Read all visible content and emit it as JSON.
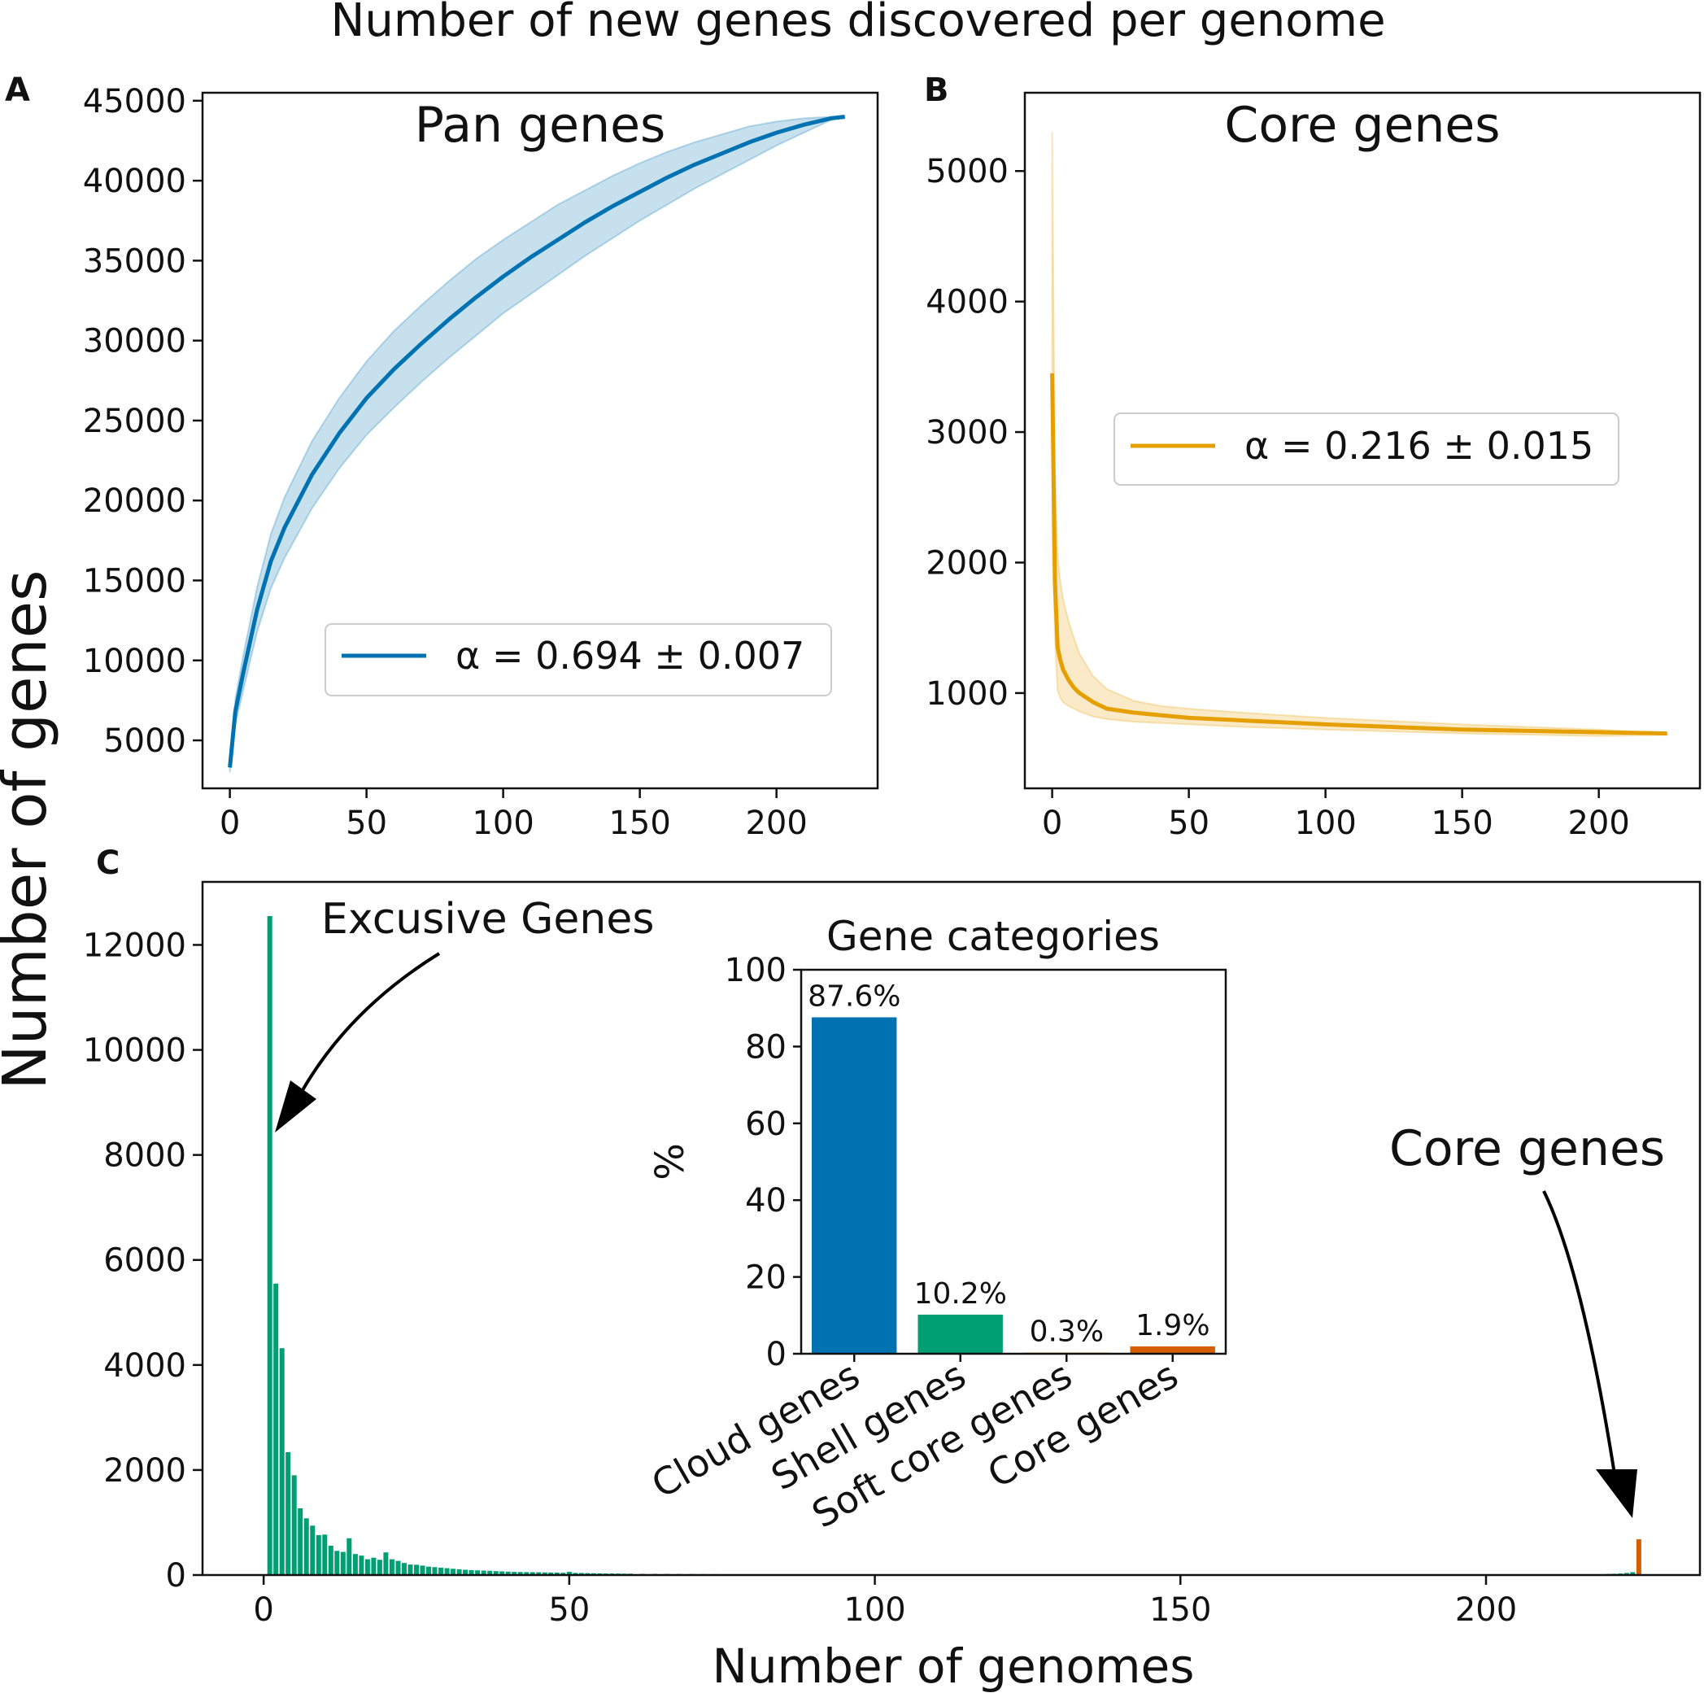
{
  "figure_title": "Number of new genes discovered per genome",
  "ylabel_shared": "Number of genes",
  "xlabel_shared": "Number of genomes",
  "colors": {
    "pan": "#0072b2",
    "core": "#e69f00",
    "hist": "#009e73",
    "core_bar": "#d55e00"
  },
  "chart_data": [
    {
      "id": "A",
      "type": "line",
      "panel_letter": "A",
      "title": "Pan genes",
      "xlabel": "",
      "ylabel": "",
      "xlim": [
        -10,
        237
      ],
      "ylim": [
        2000,
        45500
      ],
      "xticks": [
        0,
        50,
        100,
        150,
        200
      ],
      "yticks": [
        5000,
        10000,
        15000,
        20000,
        25000,
        30000,
        35000,
        40000,
        45000
      ],
      "x": [
        0,
        2,
        5,
        10,
        15,
        20,
        30,
        40,
        50,
        60,
        70,
        80,
        90,
        100,
        110,
        120,
        130,
        140,
        150,
        160,
        170,
        180,
        190,
        200,
        210,
        220,
        225
      ],
      "y": [
        3300,
        6800,
        9300,
        13200,
        16200,
        18300,
        21600,
        24200,
        26400,
        28200,
        29800,
        31300,
        32700,
        34000,
        35200,
        36300,
        37400,
        38400,
        39300,
        40200,
        41000,
        41700,
        42400,
        43000,
        43500,
        43900,
        44000
      ],
      "upper": [
        3600,
        7600,
        10400,
        14600,
        17900,
        20200,
        23700,
        26400,
        28700,
        30600,
        32200,
        33700,
        35100,
        36300,
        37400,
        38500,
        39400,
        40300,
        41100,
        41800,
        42400,
        42900,
        43400,
        43700,
        43900,
        44000,
        44000
      ],
      "lower": [
        3000,
        6000,
        8200,
        11800,
        14500,
        16400,
        19500,
        22000,
        24100,
        25800,
        27400,
        28900,
        30300,
        31700,
        32900,
        34100,
        35300,
        36400,
        37500,
        38500,
        39500,
        40400,
        41300,
        42200,
        43000,
        43800,
        44000
      ],
      "legend": {
        "label": "α = 0.694 ± 0.007",
        "placement": "lower-right"
      }
    },
    {
      "id": "B",
      "type": "line",
      "panel_letter": "B",
      "title": "Core genes",
      "xlabel": "",
      "ylabel": "",
      "xlim": [
        -10,
        237
      ],
      "ylim": [
        270,
        5600
      ],
      "xticks": [
        0,
        50,
        100,
        150,
        200
      ],
      "yticks": [
        1000,
        2000,
        3000,
        4000,
        5000
      ],
      "x": [
        0,
        1,
        2,
        3,
        4,
        6,
        8,
        10,
        15,
        20,
        30,
        40,
        50,
        70,
        100,
        150,
        200,
        225
      ],
      "y": [
        3450,
        1850,
        1350,
        1250,
        1180,
        1100,
        1040,
        1000,
        930,
        880,
        850,
        830,
        810,
        790,
        760,
        720,
        700,
        690
      ],
      "upper": [
        5300,
        2700,
        2050,
        1850,
        1720,
        1550,
        1420,
        1300,
        1130,
        1030,
        940,
        900,
        880,
        850,
        810,
        760,
        720,
        690
      ],
      "lower": [
        2300,
        1400,
        1020,
        960,
        930,
        900,
        880,
        860,
        820,
        800,
        780,
        770,
        760,
        740,
        720,
        690,
        670,
        680
      ],
      "legend": {
        "label": "α = 0.216 ± 0.015",
        "placement": "center-right"
      }
    },
    {
      "id": "C",
      "type": "bar",
      "panel_letter": "C",
      "title": "",
      "xlabel": "Number of genomes",
      "ylabel": "",
      "xlim": [
        -10,
        235
      ],
      "ylim": [
        0,
        13200
      ],
      "xticks": [
        0,
        50,
        100,
        150,
        200
      ],
      "yticks": [
        0,
        2000,
        4000,
        6000,
        8000,
        10000,
        12000
      ],
      "x": [
        1,
        2,
        3,
        4,
        5,
        6,
        7,
        8,
        9,
        10,
        11,
        12,
        13,
        14,
        15,
        16,
        17,
        18,
        19,
        20,
        21,
        22,
        23,
        24,
        25,
        26,
        27,
        28,
        29,
        30,
        31,
        32,
        33,
        34,
        35,
        36,
        37,
        38,
        39,
        40,
        41,
        42,
        43,
        44,
        45,
        46,
        47,
        48,
        49,
        50,
        51,
        52,
        53,
        54,
        55,
        56,
        57,
        58,
        59,
        60,
        62,
        64,
        66,
        68,
        70,
        72,
        74,
        76,
        78,
        80,
        85,
        90,
        95,
        100,
        110,
        120,
        130,
        140,
        150,
        160,
        170,
        180,
        190,
        200,
        210,
        220,
        221,
        222,
        223,
        224,
        225
      ],
      "values": [
        12550,
        5550,
        4320,
        2340,
        1900,
        1270,
        1080,
        940,
        760,
        770,
        560,
        460,
        440,
        700,
        400,
        370,
        300,
        330,
        290,
        430,
        300,
        270,
        230,
        200,
        195,
        180,
        160,
        150,
        140,
        130,
        120,
        110,
        100,
        95,
        90,
        85,
        80,
        75,
        70,
        65,
        60,
        58,
        56,
        54,
        52,
        50,
        48,
        46,
        44,
        60,
        40,
        38,
        36,
        34,
        32,
        30,
        29,
        28,
        27,
        26,
        24,
        22,
        21,
        20,
        19,
        18,
        17,
        16,
        15,
        14,
        12,
        11,
        10,
        9,
        8,
        7,
        6,
        6,
        5,
        5,
        5,
        5,
        6,
        8,
        10,
        20,
        25,
        30,
        40,
        55,
        680
      ],
      "core_bin": 225,
      "annotations": [
        {
          "text": "Excusive Genes",
          "target_x": 1,
          "target_y": 8400
        },
        {
          "text": "Core genes",
          "target_x": 225,
          "target_y": 1200
        }
      ]
    },
    {
      "id": "inset",
      "type": "bar",
      "title": "Gene categories",
      "xlabel": "",
      "ylabel": "%",
      "ylim": [
        0,
        100
      ],
      "yticks": [
        0,
        20,
        40,
        60,
        80,
        100
      ],
      "categories": [
        "Cloud genes",
        "Shell genes",
        "Soft core genes",
        "Core genes"
      ],
      "values": [
        87.6,
        10.2,
        0.3,
        1.9
      ],
      "labels": [
        "87.6%",
        "10.2%",
        "0.3%",
        "1.9%"
      ],
      "bar_colors": [
        "#0072b2",
        "#009e73",
        "#e69f00",
        "#d55e00"
      ]
    }
  ]
}
